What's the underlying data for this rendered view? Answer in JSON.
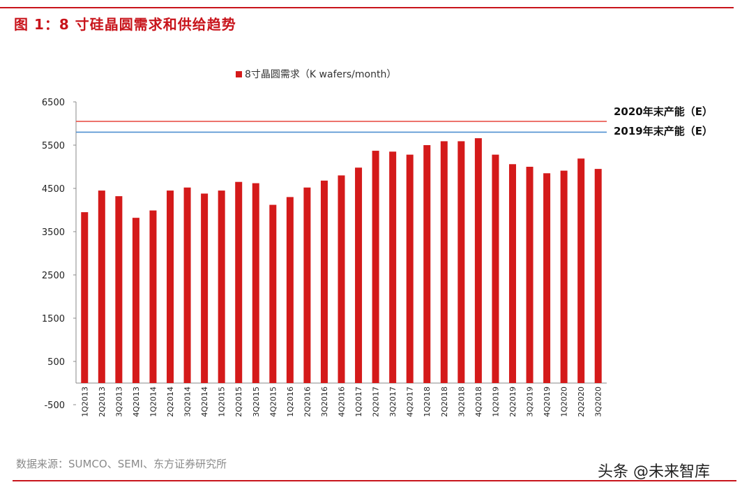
{
  "header": {
    "title": "图 1：8 寸硅晶圆需求和供给趋势"
  },
  "footer": {
    "source": "数据来源：SUMCO、SEMI、东方证券研究所",
    "watermark": "头条 @未来智库"
  },
  "colors": {
    "bar": "#d41a1a",
    "line_2020": "#e8524a",
    "line_2019": "#4f8fd0",
    "accent": "#c8141b"
  },
  "chart_data": {
    "type": "bar",
    "categories": [
      "1Q2013",
      "2Q2013",
      "3Q2013",
      "4Q2013",
      "1Q2014",
      "2Q2014",
      "3Q2014",
      "4Q2014",
      "1Q2015",
      "2Q2015",
      "3Q2015",
      "4Q2015",
      "1Q2016",
      "2Q2016",
      "3Q2016",
      "4Q2016",
      "1Q2017",
      "2Q2017",
      "3Q2017",
      "4Q2017",
      "1Q2018",
      "2Q2018",
      "3Q2018",
      "4Q2018",
      "1Q2019",
      "2Q2019",
      "3Q2019",
      "4Q2019",
      "1Q2020",
      "2Q2020",
      "3Q2020"
    ],
    "series": [
      {
        "name": "8寸晶圆需求（K wafers/month）",
        "values": [
          3950,
          4450,
          4320,
          3820,
          3990,
          4450,
          4520,
          4380,
          4450,
          4650,
          4620,
          4120,
          4300,
          4520,
          4680,
          4800,
          4980,
          5370,
          5350,
          5280,
          5500,
          5590,
          5590,
          5660,
          5280,
          5060,
          5000,
          4850,
          4910,
          5190,
          4950
        ]
      }
    ],
    "reference_lines": [
      {
        "label": "2020年末产能（E）",
        "value": 6050
      },
      {
        "label": "2019年末产能（E）",
        "value": 5800
      }
    ],
    "yticks": [
      6500,
      5500,
      4500,
      3500,
      2500,
      1500,
      500,
      -500
    ],
    "ylim": [
      -500,
      6500
    ],
    "legend_position": "top",
    "grid": false
  }
}
